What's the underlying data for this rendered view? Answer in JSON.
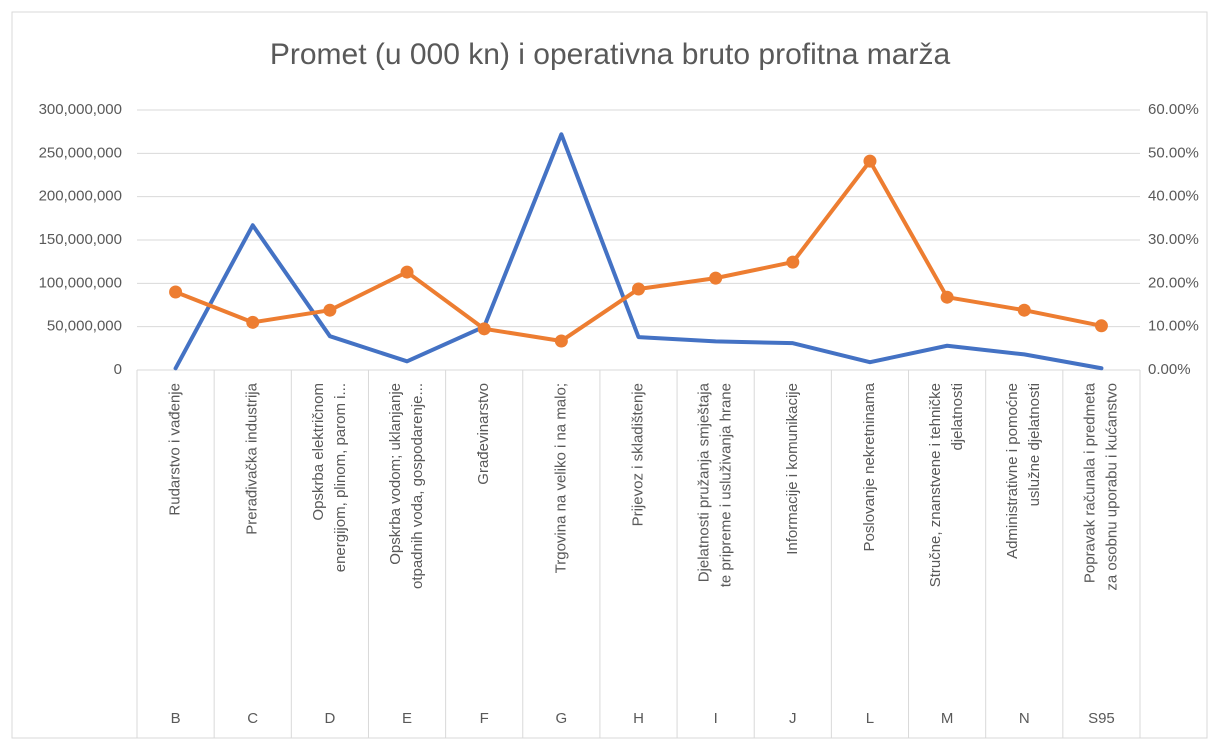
{
  "chart_data": {
    "type": "line",
    "title": "Promet (u 000 kn) i operativna bruto profitna marža",
    "categories": [
      "B",
      "C",
      "D",
      "E",
      "F",
      "G",
      "H",
      "I",
      "J",
      "L",
      "M",
      "N",
      "S95"
    ],
    "category_names": [
      [
        "Rudarstvo i vađenje"
      ],
      [
        "Prerađivačka industrija"
      ],
      [
        "Opskrba električnom",
        "energijom, plinom, parom i..."
      ],
      [
        "Opskrba vodom; uklanjanje",
        "otpadnih voda, gospodarenje..."
      ],
      [
        "Građevinarstvo"
      ],
      [
        "Trgovina na veliko i na malo;"
      ],
      [
        "Prijevoz i skladištenje"
      ],
      [
        "Djelatnosti pružanja smještaja",
        "te pripreme i usluživanja hrane"
      ],
      [
        "Informacije i komunikacije"
      ],
      [
        "Poslovanje nekretninama"
      ],
      [
        "Stručne, znanstvene i tehničke",
        "djelatnosti"
      ],
      [
        "Administrativne i pomoćne",
        "uslužne djelatnosti"
      ],
      [
        "Popravak računala i predmeta",
        "za osobnu uporabu i kućanstvo"
      ]
    ],
    "series": [
      {
        "color": "#4472c4",
        "markers": false,
        "values": [
          2000000,
          167000000,
          39000000,
          10000000,
          50000000,
          272000000,
          38000000,
          33000000,
          31000000,
          9000000,
          28000000,
          18000000,
          2000000
        ]
      },
      {
        "color": "#ed7d31",
        "markers": true,
        "axis": "y2",
        "values": [
          18,
          11,
          13.8,
          22.6,
          9.5,
          6.7,
          18.7,
          21.2,
          24.9,
          48.2,
          16.8,
          13.8,
          10.2
        ]
      }
    ],
    "ylim": [
      0,
      300000000
    ],
    "yticks": [
      0,
      {
        "value": 50000000,
        "label": "50,000,000"
      },
      {
        "value": 100000000,
        "label": "100,000,000"
      },
      {
        "value": 150000000,
        "label": "150,000,000"
      },
      {
        "value": 200000000,
        "label": "200,000,000"
      },
      {
        "value": 250000000,
        "label": "250,000,000"
      },
      {
        "value": 300000000,
        "label": "300,000,000"
      }
    ],
    "y2lim": [
      0,
      60
    ],
    "y2ticks": [
      {
        "value": 0,
        "label": "0.00%"
      },
      {
        "value": 10,
        "label": "10.00%"
      },
      {
        "value": 20,
        "label": "20.00%"
      },
      {
        "value": 30,
        "label": "30.00%"
      },
      {
        "value": 40,
        "label": "40.00%"
      },
      {
        "value": 50,
        "label": "50.00%"
      },
      {
        "value": 60,
        "label": "60.00%"
      }
    ],
    "grid": true
  }
}
